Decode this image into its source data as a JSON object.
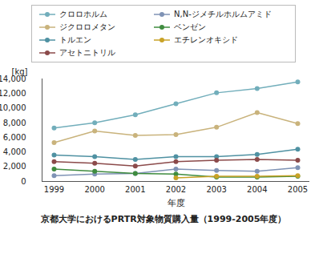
{
  "chart_data": {
    "type": "line",
    "title": "京都大学におけるPRTR対象物質購入量（1999-2005年度）",
    "x_label": "年度",
    "y_label": "[kg]",
    "x": [
      1999,
      2000,
      2001,
      2002,
      2003,
      2004,
      2005
    ],
    "series": [
      {
        "name": "クロロホルム",
        "color": "#72aebb",
        "values": [
          7300,
          8000,
          9100,
          10600,
          12100,
          12700,
          13600
        ]
      },
      {
        "name": "N,N-ジメチルホルムアミド",
        "color": "#7f93b5",
        "values": [
          800,
          1000,
          1100,
          1700,
          1500,
          1400,
          1900
        ]
      },
      {
        "name": "ジクロロメタン",
        "color": "#c9b37c",
        "values": [
          5300,
          6900,
          6300,
          6400,
          7400,
          9400,
          7900
        ]
      },
      {
        "name": "ベンゼン",
        "color": "#3f8c3f",
        "values": [
          1700,
          1400,
          1100,
          1000,
          600,
          600,
          700
        ]
      },
      {
        "name": "トルエン",
        "color": "#4f91a2",
        "values": [
          3600,
          3400,
          3000,
          3400,
          3400,
          3700,
          4400
        ]
      },
      {
        "name": "エチレンオキシド",
        "color": "#c9a227",
        "values": [
          null,
          null,
          null,
          500,
          700,
          700,
          800
        ]
      },
      {
        "name": "アセトニトリル",
        "color": "#8b4a4a",
        "values": [
          2700,
          2500,
          2100,
          2700,
          2900,
          3000,
          2900
        ]
      }
    ],
    "xticks": [
      1999,
      2000,
      2001,
      2002,
      2003,
      2004,
      2005
    ],
    "ylim": [
      0,
      14000
    ],
    "yticks": [
      0,
      {
        "value": 2000,
        "label": "2,000"
      },
      {
        "value": 4000,
        "label": "4,000"
      },
      {
        "value": 6000,
        "label": "6,000"
      },
      {
        "value": 8000,
        "label": "8,000"
      },
      {
        "value": 10000,
        "label": "10,000"
      },
      {
        "value": 12000,
        "label": "12,000"
      },
      {
        "value": 14000,
        "label": "14,000"
      }
    ],
    "marker": "circle",
    "grid": false,
    "legend": "top"
  }
}
